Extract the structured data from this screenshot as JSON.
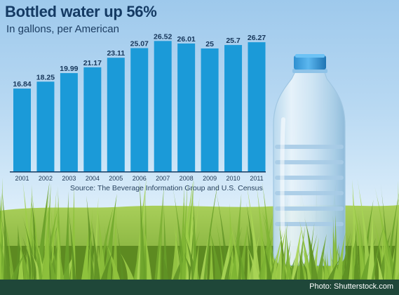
{
  "title": "Bottled water up 56%",
  "subtitle": "In gallons, per American",
  "source": "Source: The Beverage Information Group and U.S. Census",
  "credit": "Photo: Shutterstock.com",
  "colors": {
    "bar": "#1b9ad8",
    "title": "#143a63",
    "footer": "#1f4739"
  },
  "chart_data": {
    "type": "bar",
    "title": "Bottled water up 56%",
    "subtitle": "In gallons, per American",
    "categories": [
      "2001",
      "2002",
      "2003",
      "2004",
      "2005",
      "2006",
      "2007",
      "2008",
      "2009",
      "2010",
      "2011"
    ],
    "values": [
      16.84,
      18.25,
      19.99,
      21.17,
      23.11,
      25.07,
      26.52,
      26.01,
      25,
      25.7,
      26.27
    ],
    "value_labels": [
      "16.84",
      "18.25",
      "19.99",
      "21.17",
      "23.11",
      "25.07",
      "26.52",
      "26.01",
      "25",
      "25.7",
      "26.27"
    ],
    "xlabel": "",
    "ylabel": "",
    "ylim": [
      0,
      28
    ],
    "grid": false,
    "source": "Source: The Beverage Information Group and U.S. Census"
  }
}
